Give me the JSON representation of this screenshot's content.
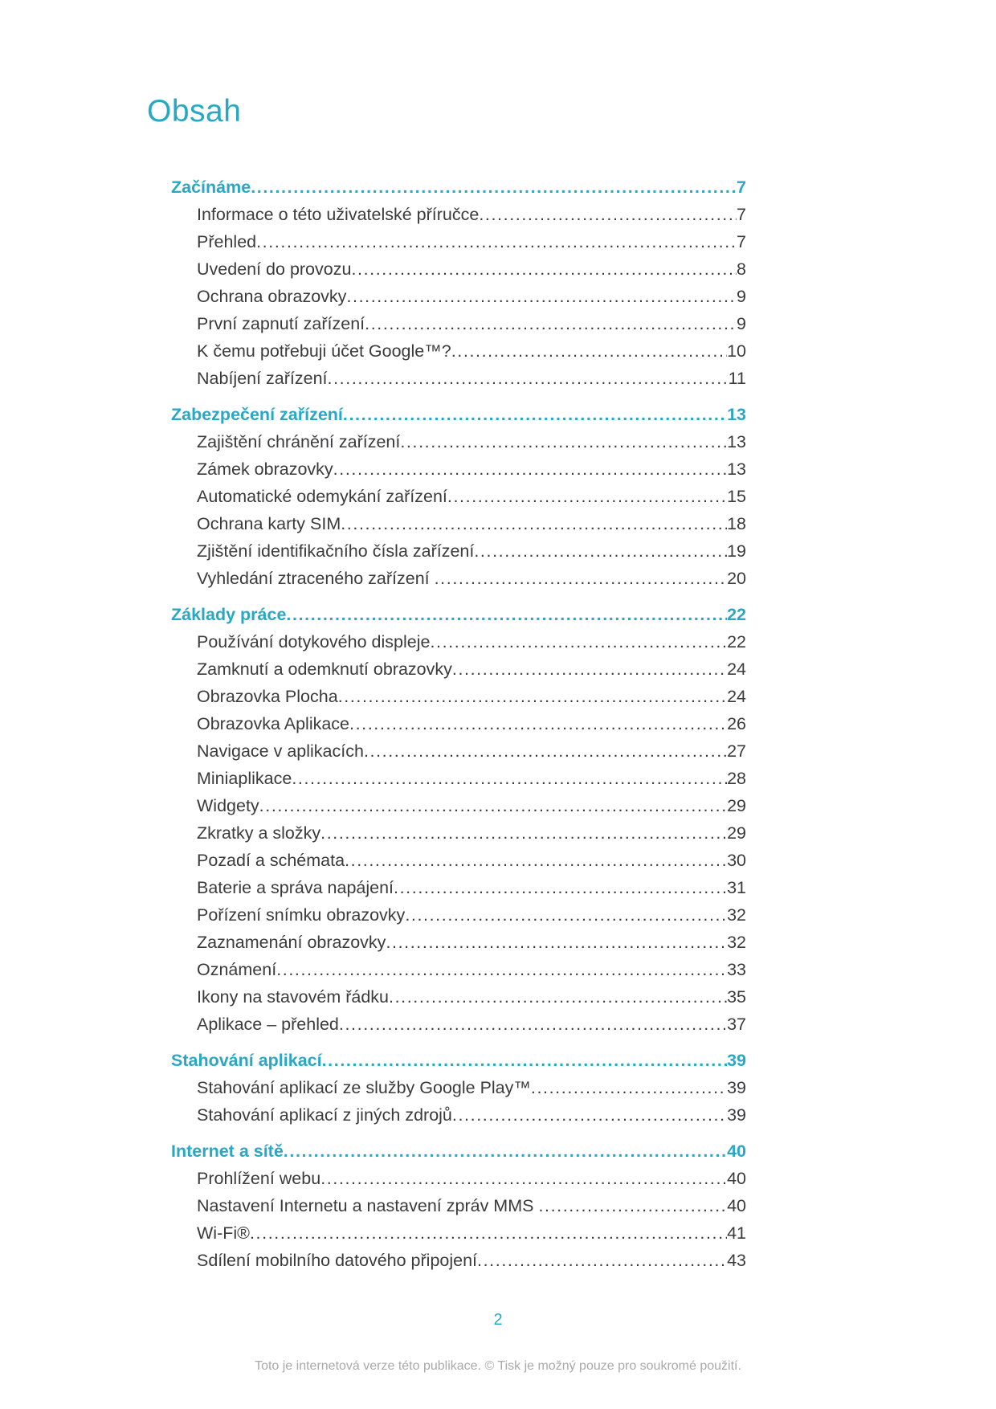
{
  "page": {
    "title": "Obsah",
    "page_number": "2",
    "footer_note": "Toto je internetová verze této publikace. © Tisk je možný pouze pro soukromé použití."
  },
  "colors": {
    "accent": "#2aa7c5",
    "body_text": "#3b3b3d",
    "footer_text": "#a9a9a9"
  },
  "toc": {
    "sections": [
      {
        "title": "Začínáme",
        "page": "7",
        "items": [
          {
            "label": "Informace o této uživatelské příručce",
            "page": "7"
          },
          {
            "label": "Přehled",
            "page": "7"
          },
          {
            "label": "Uvedení do provozu",
            "page": "8"
          },
          {
            "label": "Ochrana obrazovky",
            "page": "9"
          },
          {
            "label": "První zapnutí zařízení",
            "page": "9"
          },
          {
            "label": "K čemu potřebuji účet Google™?",
            "page": "10"
          },
          {
            "label": "Nabíjení zařízení",
            "page": "11"
          }
        ]
      },
      {
        "title": "Zabezpečení zařízení",
        "page": "13",
        "items": [
          {
            "label": "Zajištění chránění zařízení",
            "page": "13"
          },
          {
            "label": "Zámek obrazovky",
            "page": "13"
          },
          {
            "label": "Automatické odemykání zařízení",
            "page": "15"
          },
          {
            "label": "Ochrana karty SIM",
            "page": "18"
          },
          {
            "label": "Zjištění identifikačního čísla zařízení",
            "page": "19"
          },
          {
            "label": "Vyhledání ztraceného zařízení ",
            "page": "20"
          }
        ]
      },
      {
        "title": "Základy práce",
        "page": "22",
        "items": [
          {
            "label": "Používání dotykového displeje",
            "page": "22"
          },
          {
            "label": "Zamknutí a odemknutí obrazovky",
            "page": "24"
          },
          {
            "label": "Obrazovka Plocha",
            "page": "24"
          },
          {
            "label": "Obrazovka Aplikace",
            "page": "26"
          },
          {
            "label": "Navigace v aplikacích",
            "page": "27"
          },
          {
            "label": "Miniaplikace",
            "page": "28"
          },
          {
            "label": "Widgety",
            "page": "29"
          },
          {
            "label": "Zkratky a složky",
            "page": "29"
          },
          {
            "label": "Pozadí a schémata",
            "page": "30"
          },
          {
            "label": "Baterie a správa napájení",
            "page": "31"
          },
          {
            "label": "Pořízení snímku obrazovky",
            "page": "32"
          },
          {
            "label": "Zaznamenání obrazovky",
            "page": "32"
          },
          {
            "label": "Oznámení",
            "page": "33"
          },
          {
            "label": "Ikony na stavovém řádku",
            "page": "35"
          },
          {
            "label": "Aplikace – přehled",
            "page": "37"
          }
        ]
      },
      {
        "title": "Stahování aplikací",
        "page": "39",
        "items": [
          {
            "label": "Stahování aplikací ze služby Google Play™",
            "page": "39"
          },
          {
            "label": "Stahování aplikací z jiných zdrojů",
            "page": "39"
          }
        ]
      },
      {
        "title": "Internet a sítě",
        "page": "40",
        "items": [
          {
            "label": "Prohlížení webu",
            "page": "40"
          },
          {
            "label": "Nastavení Internetu a nastavení zpráv MMS ",
            "page": "40"
          },
          {
            "label": "Wi-Fi®",
            "page": "41"
          },
          {
            "label": "Sdílení mobilního datového připojení",
            "page": "43"
          }
        ]
      }
    ]
  }
}
